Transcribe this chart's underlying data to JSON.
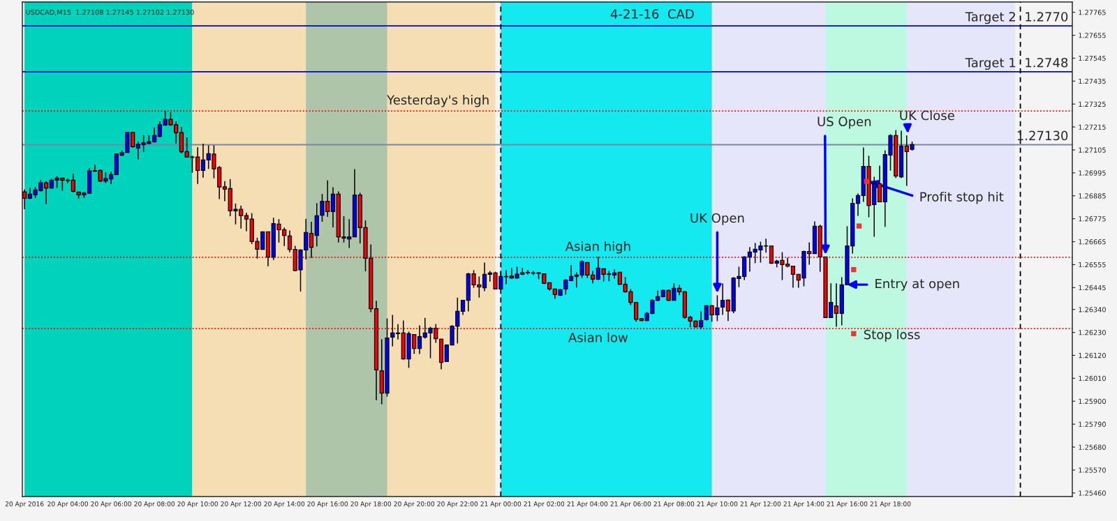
{
  "chart_data": {
    "type": "candlestick",
    "title": "4-21-16  CAD",
    "x": [
      "2016-04-20T02:00",
      "2016-04-20T02:15",
      "2016-04-20T02:30",
      "2016-04-20T02:45",
      "2016-04-20T03:00",
      "2016-04-20T03:15",
      "2016-04-20T03:30",
      "2016-04-20T03:45",
      "2016-04-20T04:00",
      "2016-04-20T04:15",
      "2016-04-20T04:30",
      "2016-04-20T04:45",
      "2016-04-20T05:00",
      "2016-04-20T05:15",
      "2016-04-20T05:30",
      "2016-04-20T05:45",
      "2016-04-20T06:00",
      "2016-04-20T06:15",
      "2016-04-20T06:30",
      "2016-04-20T06:45",
      "2016-04-20T07:00",
      "2016-04-20T07:15",
      "2016-04-20T07:30",
      "2016-04-20T07:45",
      "2016-04-20T08:00",
      "2016-04-20T08:15",
      "2016-04-20T08:30",
      "2016-04-20T08:45",
      "2016-04-20T09:00",
      "2016-04-20T09:15",
      "2016-04-20T09:30",
      "2016-04-20T09:45",
      "2016-04-20T10:00",
      "2016-04-20T10:15",
      "2016-04-20T10:30",
      "2016-04-20T10:45",
      "2016-04-20T11:00",
      "2016-04-20T11:15",
      "2016-04-20T11:30",
      "2016-04-20T11:45",
      "2016-04-20T12:00",
      "2016-04-20T12:15",
      "2016-04-20T12:30",
      "2016-04-20T12:45",
      "2016-04-20T13:00",
      "2016-04-20T13:15",
      "2016-04-20T13:30",
      "2016-04-20T13:45",
      "2016-04-20T14:00",
      "2016-04-20T14:15",
      "2016-04-20T14:30",
      "2016-04-20T14:45",
      "2016-04-20T15:00",
      "2016-04-20T15:15",
      "2016-04-20T15:30",
      "2016-04-20T15:45",
      "2016-04-20T16:00",
      "2016-04-20T16:15",
      "2016-04-20T16:30",
      "2016-04-20T16:45",
      "2016-04-20T17:00",
      "2016-04-20T17:15",
      "2016-04-20T17:30",
      "2016-04-20T17:45",
      "2016-04-20T18:00",
      "2016-04-20T18:15",
      "2016-04-20T18:30",
      "2016-04-20T18:45",
      "2016-04-20T19:00",
      "2016-04-20T19:15",
      "2016-04-20T19:30",
      "2016-04-20T19:45",
      "2016-04-20T20:00",
      "2016-04-20T20:15",
      "2016-04-20T20:30",
      "2016-04-20T20:45",
      "2016-04-20T21:00",
      "2016-04-20T21:15",
      "2016-04-20T21:30",
      "2016-04-20T21:45",
      "2016-04-20T22:00",
      "2016-04-20T22:15",
      "2016-04-20T22:30",
      "2016-04-20T22:45",
      "2016-04-20T23:00",
      "2016-04-20T23:15",
      "2016-04-20T23:30",
      "2016-04-20T23:45",
      "2016-04-21T00:00",
      "2016-04-21T00:15",
      "2016-04-21T00:30",
      "2016-04-21T00:45",
      "2016-04-21T01:00",
      "2016-04-21T01:15",
      "2016-04-21T01:30",
      "2016-04-21T01:45",
      "2016-04-21T02:00",
      "2016-04-21T02:15",
      "2016-04-21T02:30",
      "2016-04-21T02:45",
      "2016-04-21T03:00",
      "2016-04-21T03:15",
      "2016-04-21T03:30",
      "2016-04-21T03:45",
      "2016-04-21T04:00",
      "2016-04-21T04:15",
      "2016-04-21T04:30",
      "2016-04-21T04:45",
      "2016-04-21T05:00",
      "2016-04-21T05:15",
      "2016-04-21T05:30",
      "2016-04-21T05:45",
      "2016-04-21T06:00",
      "2016-04-21T06:15",
      "2016-04-21T06:30",
      "2016-04-21T06:45",
      "2016-04-21T07:00",
      "2016-04-21T07:15",
      "2016-04-21T07:30",
      "2016-04-21T07:45",
      "2016-04-21T08:00",
      "2016-04-21T08:15",
      "2016-04-21T08:30",
      "2016-04-21T08:45",
      "2016-04-21T09:00",
      "2016-04-21T09:15",
      "2016-04-21T09:30",
      "2016-04-21T09:45",
      "2016-04-21T10:00",
      "2016-04-21T10:15",
      "2016-04-21T10:30",
      "2016-04-21T10:45",
      "2016-04-21T11:00",
      "2016-04-21T11:15",
      "2016-04-21T11:30",
      "2016-04-21T11:45",
      "2016-04-21T12:00",
      "2016-04-21T12:15",
      "2016-04-21T12:30",
      "2016-04-21T12:45",
      "2016-04-21T13:00",
      "2016-04-21T13:15",
      "2016-04-21T13:30",
      "2016-04-21T13:45",
      "2016-04-21T14:00",
      "2016-04-21T14:15",
      "2016-04-21T14:30",
      "2016-04-21T14:45",
      "2016-04-21T15:00",
      "2016-04-21T15:15",
      "2016-04-21T15:30",
      "2016-04-21T15:45",
      "2016-04-21T16:00",
      "2016-04-21T16:15",
      "2016-04-21T16:30",
      "2016-04-21T16:45",
      "2016-04-21T17:00",
      "2016-04-21T17:15",
      "2016-04-21T17:30",
      "2016-04-21T17:45",
      "2016-04-21T18:00",
      "2016-04-21T18:15",
      "2016-04-21T18:30",
      "2016-04-21T18:45",
      "2016-04-21T19:00"
    ],
    "ohlc": [
      [
        1.26904,
        1.26916,
        1.26821,
        1.26873
      ],
      [
        1.26873,
        1.26923,
        1.26869,
        1.26893
      ],
      [
        1.2689,
        1.26928,
        1.26875,
        1.26913
      ],
      [
        1.2691,
        1.26961,
        1.26906,
        1.26947
      ],
      [
        1.26947,
        1.26955,
        1.26845,
        1.26922
      ],
      [
        1.26922,
        1.26967,
        1.26919,
        1.2696
      ],
      [
        1.2696,
        1.26979,
        1.26923,
        1.2697
      ],
      [
        1.2697,
        1.2697,
        1.26909,
        1.2696
      ],
      [
        1.2696,
        1.26968,
        1.26946,
        1.26958
      ],
      [
        1.2696,
        1.26991,
        1.26902,
        1.26906
      ],
      [
        1.26903,
        1.26903,
        1.26872,
        1.2689
      ],
      [
        1.2689,
        1.26903,
        1.26875,
        1.26898
      ],
      [
        1.26897,
        1.27018,
        1.26897,
        1.27004
      ],
      [
        1.27006,
        1.27034,
        1.27,
        1.27003
      ],
      [
        1.27007,
        1.2701,
        1.26952,
        1.26956
      ],
      [
        1.26956,
        1.26998,
        1.26946,
        1.26967
      ],
      [
        1.26966,
        1.27,
        1.26942,
        1.26987
      ],
      [
        1.26987,
        1.27088,
        1.26987,
        1.27085
      ],
      [
        1.27079,
        1.27102,
        1.27077,
        1.27092
      ],
      [
        1.27093,
        1.27191,
        1.27093,
        1.27189
      ],
      [
        1.27189,
        1.27191,
        1.27116,
        1.2712
      ],
      [
        1.27114,
        1.27146,
        1.27059,
        1.27132
      ],
      [
        1.2713,
        1.27175,
        1.27095,
        1.27139
      ],
      [
        1.27136,
        1.27175,
        1.27133,
        1.27145
      ],
      [
        1.27144,
        1.27213,
        1.2714,
        1.27175
      ],
      [
        1.2717,
        1.27241,
        1.27166,
        1.27226
      ],
      [
        1.27224,
        1.27292,
        1.27221,
        1.27252
      ],
      [
        1.27252,
        1.27286,
        1.2722,
        1.27226
      ],
      [
        1.27226,
        1.27242,
        1.27136,
        1.27187
      ],
      [
        1.27188,
        1.27215,
        1.27088,
        1.27096
      ],
      [
        1.27097,
        1.27165,
        1.27071,
        1.27071
      ],
      [
        1.27071,
        1.27077,
        1.26996,
        1.27069
      ],
      [
        1.27071,
        1.27118,
        1.26942,
        1.27007
      ],
      [
        1.27007,
        1.27135,
        1.26972,
        1.27057
      ],
      [
        1.27057,
        1.27127,
        1.27014,
        1.27087
      ],
      [
        1.27085,
        1.27127,
        1.26969,
        1.27014
      ],
      [
        1.27021,
        1.27027,
        1.26869,
        1.26927
      ],
      [
        1.26928,
        1.26955,
        1.26859,
        1.26917
      ],
      [
        1.2692,
        1.26965,
        1.26787,
        1.26813
      ],
      [
        1.26813,
        1.26848,
        1.26748,
        1.2682
      ],
      [
        1.2682,
        1.26838,
        1.26728,
        1.2679
      ],
      [
        1.2679,
        1.26804,
        1.26715,
        1.26773
      ],
      [
        1.26773,
        1.26802,
        1.26654,
        1.26666
      ],
      [
        1.26666,
        1.26684,
        1.26584,
        1.26629
      ],
      [
        1.26628,
        1.26714,
        1.26628,
        1.26712
      ],
      [
        1.26712,
        1.26714,
        1.26547,
        1.26591
      ],
      [
        1.26591,
        1.2678,
        1.26577,
        1.26752
      ],
      [
        1.26749,
        1.26773,
        1.26661,
        1.26722
      ],
      [
        1.26722,
        1.26733,
        1.26644,
        1.26695
      ],
      [
        1.26692,
        1.26719,
        1.26614,
        1.26628
      ],
      [
        1.26628,
        1.26645,
        1.26523,
        1.26527
      ],
      [
        1.2653,
        1.26628,
        1.26426,
        1.26625
      ],
      [
        1.26625,
        1.26775,
        1.2658,
        1.26709
      ],
      [
        1.26705,
        1.2676,
        1.26587,
        1.26638
      ],
      [
        1.26695,
        1.2685,
        1.26642,
        1.26789
      ],
      [
        1.26792,
        1.26894,
        1.26761,
        1.26859
      ],
      [
        1.26859,
        1.26959,
        1.26784,
        1.26809
      ],
      [
        1.26809,
        1.26926,
        1.26734,
        1.26893
      ],
      [
        1.26893,
        1.26906,
        1.26661,
        1.26688
      ],
      [
        1.26688,
        1.26787,
        1.26661,
        1.26682
      ],
      [
        1.26678,
        1.26773,
        1.26635,
        1.26688
      ],
      [
        1.26688,
        1.27013,
        1.26688,
        1.26889
      ],
      [
        1.26889,
        1.26899,
        1.26657,
        1.26732
      ],
      [
        1.26732,
        1.26767,
        1.26523,
        1.26585
      ],
      [
        1.26585,
        1.26652,
        1.26327,
        1.26344
      ],
      [
        1.26344,
        1.26382,
        1.25905,
        1.2605
      ],
      [
        1.26046,
        1.26197,
        1.25886,
        1.25939
      ],
      [
        1.25939,
        1.26297,
        1.25922,
        1.26203
      ],
      [
        1.26207,
        1.26314,
        1.26163,
        1.26227
      ],
      [
        1.26227,
        1.2627,
        1.26196,
        1.26224
      ],
      [
        1.26227,
        1.26287,
        1.261,
        1.26103
      ],
      [
        1.26103,
        1.26234,
        1.2606,
        1.26224
      ],
      [
        1.2622,
        1.2622,
        1.26127,
        1.26153
      ],
      [
        1.26153,
        1.26264,
        1.26127,
        1.2621
      ],
      [
        1.26207,
        1.263,
        1.262,
        1.26227
      ],
      [
        1.26227,
        1.26257,
        1.26106,
        1.2625
      ],
      [
        1.2625,
        1.2627,
        1.2618,
        1.262
      ],
      [
        1.26197,
        1.262,
        1.26053,
        1.26086
      ],
      [
        1.2609,
        1.26173,
        1.2609,
        1.2617
      ],
      [
        1.2617,
        1.26264,
        1.2617,
        1.2626
      ],
      [
        1.2626,
        1.26397,
        1.26177,
        1.26331
      ],
      [
        1.26331,
        1.26387,
        1.26314,
        1.26384
      ],
      [
        1.26384,
        1.26515,
        1.26331,
        1.26511
      ],
      [
        1.26511,
        1.26528,
        1.26444,
        1.26458
      ],
      [
        1.26458,
        1.26498,
        1.26397,
        1.26448
      ],
      [
        1.26444,
        1.26565,
        1.26428,
        1.26508
      ],
      [
        1.26508,
        1.26525,
        1.26474,
        1.26515
      ],
      [
        1.26515,
        1.26521,
        1.26438,
        1.26438
      ],
      [
        1.26438,
        1.26525,
        1.26438,
        1.26498
      ],
      [
        1.26497,
        1.26528,
        1.26461,
        1.26498
      ],
      [
        1.265,
        1.26539,
        1.26488,
        1.26491
      ],
      [
        1.26491,
        1.26545,
        1.26488,
        1.26509
      ],
      [
        1.26509,
        1.26539,
        1.26505,
        1.26516
      ],
      [
        1.26516,
        1.2653,
        1.26508,
        1.26518
      ],
      [
        1.26515,
        1.26524,
        1.26505,
        1.26514
      ],
      [
        1.26516,
        1.26519,
        1.26485,
        1.26513
      ],
      [
        1.26511,
        1.26511,
        1.26462,
        1.26465
      ],
      [
        1.26468,
        1.26468,
        1.26431,
        1.26438
      ],
      [
        1.26438,
        1.26438,
        1.26391,
        1.26411
      ],
      [
        1.26408,
        1.26438,
        1.26404,
        1.26435
      ],
      [
        1.26438,
        1.26485,
        1.26411,
        1.26481
      ],
      [
        1.26478,
        1.26552,
        1.26475,
        1.26498
      ],
      [
        1.26498,
        1.26518,
        1.26445,
        1.26505
      ],
      [
        1.26505,
        1.26575,
        1.26491,
        1.26569
      ],
      [
        1.26565,
        1.26565,
        1.26491,
        1.26505
      ],
      [
        1.26505,
        1.26525,
        1.26465,
        1.26485
      ],
      [
        1.26485,
        1.26592,
        1.26481,
        1.26538
      ],
      [
        1.26535,
        1.26535,
        1.26475,
        1.26508
      ],
      [
        1.2651,
        1.26525,
        1.26475,
        1.26508
      ],
      [
        1.26505,
        1.26532,
        1.26488,
        1.26515
      ],
      [
        1.26518,
        1.26518,
        1.26458,
        1.26461
      ],
      [
        1.26461,
        1.26495,
        1.26421,
        1.26425
      ],
      [
        1.26425,
        1.26438,
        1.26361,
        1.26374
      ],
      [
        1.26374,
        1.26374,
        1.26281,
        1.26293
      ],
      [
        1.26296,
        1.26296,
        1.26285,
        1.26287
      ],
      [
        1.26287,
        1.26327,
        1.26284,
        1.26321
      ],
      [
        1.26321,
        1.26388,
        1.26317,
        1.26384
      ],
      [
        1.26384,
        1.26431,
        1.26381,
        1.26401
      ],
      [
        1.26401,
        1.26435,
        1.26398,
        1.26431
      ],
      [
        1.26431,
        1.26435,
        1.26381,
        1.26384
      ],
      [
        1.26384,
        1.26465,
        1.26384,
        1.26441
      ],
      [
        1.26441,
        1.26458,
        1.26408,
        1.26425
      ],
      [
        1.26425,
        1.26428,
        1.26296,
        1.26303
      ],
      [
        1.26303,
        1.2631,
        1.26254,
        1.26284
      ],
      [
        1.26284,
        1.26287,
        1.26254,
        1.26257
      ],
      [
        1.26257,
        1.26331,
        1.26247,
        1.26287
      ],
      [
        1.26291,
        1.26361,
        1.26287,
        1.26358
      ],
      [
        1.26358,
        1.26361,
        1.26281,
        1.26314
      ],
      [
        1.26314,
        1.26408,
        1.26284,
        1.26348
      ],
      [
        1.26351,
        1.26465,
        1.26314,
        1.26384
      ],
      [
        1.26385,
        1.26385,
        1.26285,
        1.26333
      ],
      [
        1.26333,
        1.26495,
        1.26322,
        1.26491
      ],
      [
        1.26488,
        1.26545,
        1.26447,
        1.26498
      ],
      [
        1.26498,
        1.26595,
        1.26481,
        1.26592
      ],
      [
        1.26592,
        1.26639,
        1.26521,
        1.26615
      ],
      [
        1.26615,
        1.26659,
        1.26562,
        1.26629
      ],
      [
        1.26625,
        1.26665,
        1.26565,
        1.26645
      ],
      [
        1.26645,
        1.26679,
        1.26612,
        1.26644
      ],
      [
        1.26645,
        1.26645,
        1.26558,
        1.26562
      ],
      [
        1.26562,
        1.26578,
        1.26542,
        1.26572
      ],
      [
        1.26575,
        1.26615,
        1.26481,
        1.26555
      ],
      [
        1.26558,
        1.26588,
        1.26542,
        1.26548
      ],
      [
        1.26548,
        1.26548,
        1.26444,
        1.26508
      ],
      [
        1.26508,
        1.26508,
        1.26444,
        1.26481
      ],
      [
        1.26491,
        1.26622,
        1.26451,
        1.26618
      ],
      [
        1.26618,
        1.26662,
        1.26555,
        1.26608
      ],
      [
        1.26608,
        1.26762,
        1.26608,
        1.26739
      ],
      [
        1.26739,
        1.26746,
        1.26521,
        1.26592
      ],
      [
        1.26592,
        1.26592,
        1.26301,
        1.26301
      ],
      [
        1.26301,
        1.26465,
        1.26301,
        1.26374
      ],
      [
        1.26357,
        1.26465,
        1.26257,
        1.26321
      ],
      [
        1.26321,
        1.26495,
        1.26264,
        1.26458
      ],
      [
        1.26458,
        1.26739,
        1.26458,
        1.26645
      ],
      [
        1.26645,
        1.26873,
        1.26608,
        1.26849
      ],
      [
        1.26849,
        1.26896,
        1.26789,
        1.26886
      ],
      [
        1.26886,
        1.27117,
        1.26856,
        1.27026
      ],
      [
        1.27026,
        1.27077,
        1.26782,
        1.26839
      ],
      [
        1.26843,
        1.26976,
        1.26689,
        1.26943
      ],
      [
        1.26943,
        1.2703,
        1.26856,
        1.26856
      ],
      [
        1.26856,
        1.27103,
        1.26736,
        1.27083
      ],
      [
        1.2708,
        1.2718,
        1.27006,
        1.27174
      ],
      [
        1.27174,
        1.272,
        1.2697,
        1.2698
      ],
      [
        1.26976,
        1.27197,
        1.2697,
        1.27124
      ],
      [
        1.27124,
        1.27174,
        1.26933,
        1.27097
      ],
      [
        1.27108,
        1.27145,
        1.27102,
        1.2713
      ]
    ],
    "colors": [
      "#ff0000",
      "#0000ff",
      "#0000ff",
      "#0000ff",
      "#ff0000",
      "#0000ff",
      "#0000ff",
      "#ff0000",
      "#ff0000",
      "#ff0000",
      "#ff0000",
      "#0000ff",
      "#0000ff",
      "#ff0000",
      "#ff0000",
      "#0000ff",
      "#0000ff",
      "#0000ff",
      "#0000ff",
      "#0000ff",
      "#ff0000",
      "#0000ff",
      "#0000ff",
      "#0000ff",
      "#0000ff",
      "#0000ff",
      "#0000ff",
      "#ff0000",
      "#ff0000",
      "#ff0000",
      "#ff0000",
      "#ff0000",
      "#ff0000",
      "#0000ff",
      "#0000ff",
      "#ff0000",
      "#ff0000",
      "#ff0000",
      "#ff0000",
      "#0000ff",
      "#ff0000",
      "#ff0000",
      "#ff0000",
      "#ff0000",
      "#0000ff",
      "#ff0000",
      "#0000ff",
      "#ff0000",
      "#ff0000",
      "#ff0000",
      "#ff0000",
      "#0000ff",
      "#0000ff",
      "#ff0000",
      "#0000ff",
      "#0000ff",
      "#ff0000",
      "#0000ff",
      "#ff0000",
      "#ff0000",
      "#0000ff",
      "#0000ff",
      "#ff0000",
      "#ff0000",
      "#ff0000",
      "#ff0000",
      "#ff0000",
      "#0000ff",
      "#0000ff",
      "#ff0000",
      "#ff0000",
      "#0000ff",
      "#ff0000",
      "#0000ff",
      "#0000ff",
      "#0000ff",
      "#ff0000",
      "#ff0000",
      "#0000ff",
      "#0000ff",
      "#0000ff",
      "#0000ff",
      "#0000ff",
      "#ff0000",
      "#ff0000",
      "#0000ff",
      "#0000ff",
      "#ff0000",
      "#0000ff",
      "#0000ff",
      "#ff0000",
      "#0000ff",
      "#0000ff",
      "#0000ff",
      "#ff0000",
      "#ff0000",
      "#ff0000",
      "#ff0000",
      "#ff0000",
      "#0000ff",
      "#0000ff",
      "#0000ff",
      "#0000ff",
      "#0000ff",
      "#ff0000",
      "#ff0000",
      "#0000ff",
      "#ff0000",
      "#ff0000",
      "#0000ff",
      "#ff0000",
      "#ff0000",
      "#ff0000",
      "#ff0000",
      "#ff0000",
      "#0000ff",
      "#0000ff",
      "#0000ff",
      "#0000ff",
      "#ff0000",
      "#0000ff",
      "#ff0000",
      "#ff0000",
      "#ff0000",
      "#ff0000",
      "#0000ff",
      "#0000ff",
      "#ff0000",
      "#0000ff",
      "#0000ff",
      "#ff0000",
      "#0000ff",
      "#0000ff",
      "#0000ff",
      "#0000ff",
      "#0000ff",
      "#0000ff",
      "#ff0000",
      "#ff0000",
      "#0000ff",
      "#ff0000",
      "#ff0000",
      "#ff0000",
      "#ff0000",
      "#0000ff",
      "#ff0000",
      "#0000ff",
      "#ff0000",
      "#ff0000",
      "#0000ff",
      "#ff0000",
      "#0000ff",
      "#0000ff",
      "#0000ff",
      "#0000ff",
      "#0000ff",
      "#ff0000",
      "#0000ff",
      "#ff0000",
      "#0000ff",
      "#0000ff",
      "#ff0000",
      "#0000ff",
      "#ff0000",
      "#0000ff"
    ],
    "series": [
      {
        "type": "scatter",
        "color": "#ee3333",
        "marker": "square",
        "x": [
          "2016-04-21T16:18",
          "2016-04-21T16:18",
          "2016-04-21T16:33",
          "2016-04-21T16:54"
        ],
        "values": [
          1.26224,
          1.26531,
          1.2674,
          1.26954
        ]
      }
    ],
    "xlim": [
      "2016-04-20T01:54",
      "2016-04-22T02:24"
    ],
    "xticks": [
      {
        "value": "2016-04-20T02:00",
        "label": "20 Apr 2016"
      },
      {
        "value": "2016-04-20T04:00",
        "label": "20 Apr 04:00"
      },
      {
        "value": "2016-04-20T06:00",
        "label": "20 Apr 06:00"
      },
      {
        "value": "2016-04-20T08:00",
        "label": "20 Apr 08:00"
      },
      {
        "value": "2016-04-20T10:00",
        "label": "20 Apr 10:00"
      },
      {
        "value": "2016-04-20T12:00",
        "label": "20 Apr 12:00"
      },
      {
        "value": "2016-04-20T14:00",
        "label": "20 Apr 14:00"
      },
      {
        "value": "2016-04-20T16:00",
        "label": "20 Apr 16:00"
      },
      {
        "value": "2016-04-20T18:00",
        "label": "20 Apr 18:00"
      },
      {
        "value": "2016-04-20T20:00",
        "label": "20 Apr 20:00"
      },
      {
        "value": "2016-04-20T22:00",
        "label": "20 Apr 22:00"
      },
      {
        "value": "2016-04-21T00:00",
        "label": "21 Apr 00:00"
      },
      {
        "value": "2016-04-21T02:00",
        "label": "21 Apr 02:00"
      },
      {
        "value": "2016-04-21T04:00",
        "label": "21 Apr 04:00"
      },
      {
        "value": "2016-04-21T06:00",
        "label": "21 Apr 06:00"
      },
      {
        "value": "2016-04-21T08:00",
        "label": "21 Apr 08:00"
      },
      {
        "value": "2016-04-21T10:00",
        "label": "21 Apr 10:00"
      },
      {
        "value": "2016-04-21T12:00",
        "label": "21 Apr 12:00"
      },
      {
        "value": "2016-04-21T14:00",
        "label": "21 Apr 14:00"
      },
      {
        "value": "2016-04-21T16:00",
        "label": "21 Apr 16:00"
      },
      {
        "value": "2016-04-21T18:00",
        "label": "21 Apr 18:00"
      }
    ],
    "ylim": [
      1.25443,
      1.27814
    ],
    "yticks": [
      1.27765,
      1.27655,
      1.27545,
      1.27435,
      1.27325,
      1.27215,
      1.27105,
      1.26995,
      1.26885,
      1.26775,
      1.26665,
      1.26555,
      1.26445,
      {
        "value": 1.2634,
        "label": "1.26340"
      },
      {
        "value": 1.2623,
        "label": "1.26230"
      },
      {
        "value": 1.2612,
        "label": "1.26120"
      },
      {
        "value": 1.2601,
        "label": "1.26010"
      },
      {
        "value": 1.259,
        "label": "1.25900"
      },
      {
        "value": 1.2579,
        "label": "1.25790"
      },
      {
        "value": 1.2568,
        "label": "1.25680"
      },
      {
        "value": 1.2557,
        "label": "1.25570"
      },
      {
        "value": 1.2546,
        "label": "1.25460"
      }
    ],
    "bands": [
      {
        "axis": "x",
        "from": "2016-04-20T02:00",
        "to": "2016-04-20T09:45",
        "color": "#00d3bb"
      },
      {
        "axis": "x",
        "from": "2016-04-20T09:45",
        "to": "2016-04-20T23:45",
        "color": "#f5deb3"
      },
      {
        "axis": "x",
        "from": "2016-04-20T15:00",
        "to": "2016-04-20T18:45",
        "color": "#afc5aa"
      },
      {
        "axis": "x",
        "from": "2016-04-21T00:00",
        "to": "2016-04-21T23:45",
        "color": "#e6e6fa"
      },
      {
        "axis": "x",
        "from": "2016-04-21T00:00",
        "to": "2016-04-21T09:45",
        "color": "#14e9f0"
      },
      {
        "axis": "x",
        "from": "2016-04-21T15:00",
        "to": "2016-04-21T18:45",
        "color": "#bdf8e0"
      }
    ],
    "ref_lines": [
      {
        "axis": "y",
        "value": 1.277,
        "label": "Target 2  1.2770",
        "color": "#0000cc"
      },
      {
        "axis": "y",
        "value": 1.2748,
        "label": "Target 1  1.2748",
        "color": "#0000cc"
      },
      {
        "axis": "y",
        "value": 1.27292,
        "color": "#ff0000",
        "line_style": "dotted"
      },
      {
        "axis": "y",
        "value": 1.2713,
        "label": "1.27130",
        "color": "#7788a0"
      },
      {
        "axis": "y",
        "value": 1.2659,
        "color": "#ff0000",
        "line_style": "dotted"
      },
      {
        "axis": "y",
        "value": 1.26248,
        "color": "#ff0000",
        "line_style": "dotted"
      },
      {
        "axis": "x",
        "value": "2016-04-21T00:00",
        "color": "#000000",
        "line_style": "dashed"
      },
      {
        "axis": "x",
        "value": "2016-04-22T00:00",
        "color": "#000000",
        "line_style": "dashed"
      }
    ],
    "annotations": [
      "USDCAD,M15  1.27108 1.27145 1.27102 1.27130",
      {
        "text": "Yesterday's high",
        "x": "2016-04-20T23:45",
        "y": 1.27292
      },
      {
        "text": "Asian high",
        "x": "2016-04-21T04:30",
        "y": 1.2659
      },
      {
        "text": "Asian low",
        "x": "2016-04-21T04:30",
        "y": 1.26248
      },
      {
        "text": "UK Open",
        "x": "2016-04-21T10:00",
        "y": 1.26419
      },
      {
        "text": "US Open",
        "x": "2016-04-21T15:00",
        "y": 1.26603
      },
      {
        "text": "UK Close",
        "x": "2016-04-21T18:48",
        "y": 1.27185
      },
      {
        "text": "Profit stop hit",
        "x": "2016-04-21T17:00",
        "y": 1.26954
      },
      {
        "text": "Entry at open",
        "x": "2016-04-21T16:00",
        "y": 1.26459
      },
      {
        "text": "Stop loss",
        "x": "2016-04-21T16:18",
        "y": 1.26224
      }
    ]
  }
}
